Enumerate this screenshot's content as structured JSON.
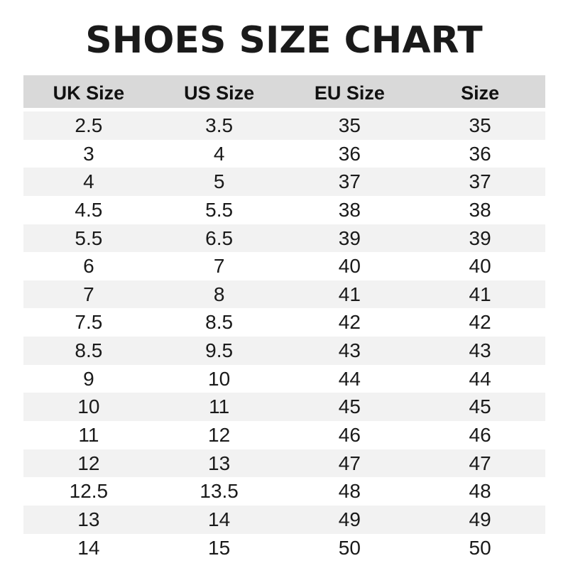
{
  "title": "SHOES SIZE CHART",
  "table": {
    "headers": [
      "UK Size",
      "US Size",
      "EU Size",
      "Size"
    ],
    "rows": [
      [
        "2.5",
        "3.5",
        "35",
        "35"
      ],
      [
        "3",
        "4",
        "36",
        "36"
      ],
      [
        "4",
        "5",
        "37",
        "37"
      ],
      [
        "4.5",
        "5.5",
        "38",
        "38"
      ],
      [
        "5.5",
        "6.5",
        "39",
        "39"
      ],
      [
        "6",
        "7",
        "40",
        "40"
      ],
      [
        "7",
        "8",
        "41",
        "41"
      ],
      [
        "7.5",
        "8.5",
        "42",
        "42"
      ],
      [
        "8.5",
        "9.5",
        "43",
        "43"
      ],
      [
        "9",
        "10",
        "44",
        "44"
      ],
      [
        "10",
        "11",
        "45",
        "45"
      ],
      [
        "11",
        "12",
        "46",
        "46"
      ],
      [
        "12",
        "13",
        "47",
        "47"
      ],
      [
        "12.5",
        "13.5",
        "48",
        "48"
      ],
      [
        "13",
        "14",
        "49",
        "49"
      ],
      [
        "14",
        "15",
        "50",
        "50"
      ]
    ]
  },
  "colors": {
    "header_bg": "#d9d9d9",
    "stripe_bg": "#f2f2f2",
    "text": "#1a1a1a"
  }
}
